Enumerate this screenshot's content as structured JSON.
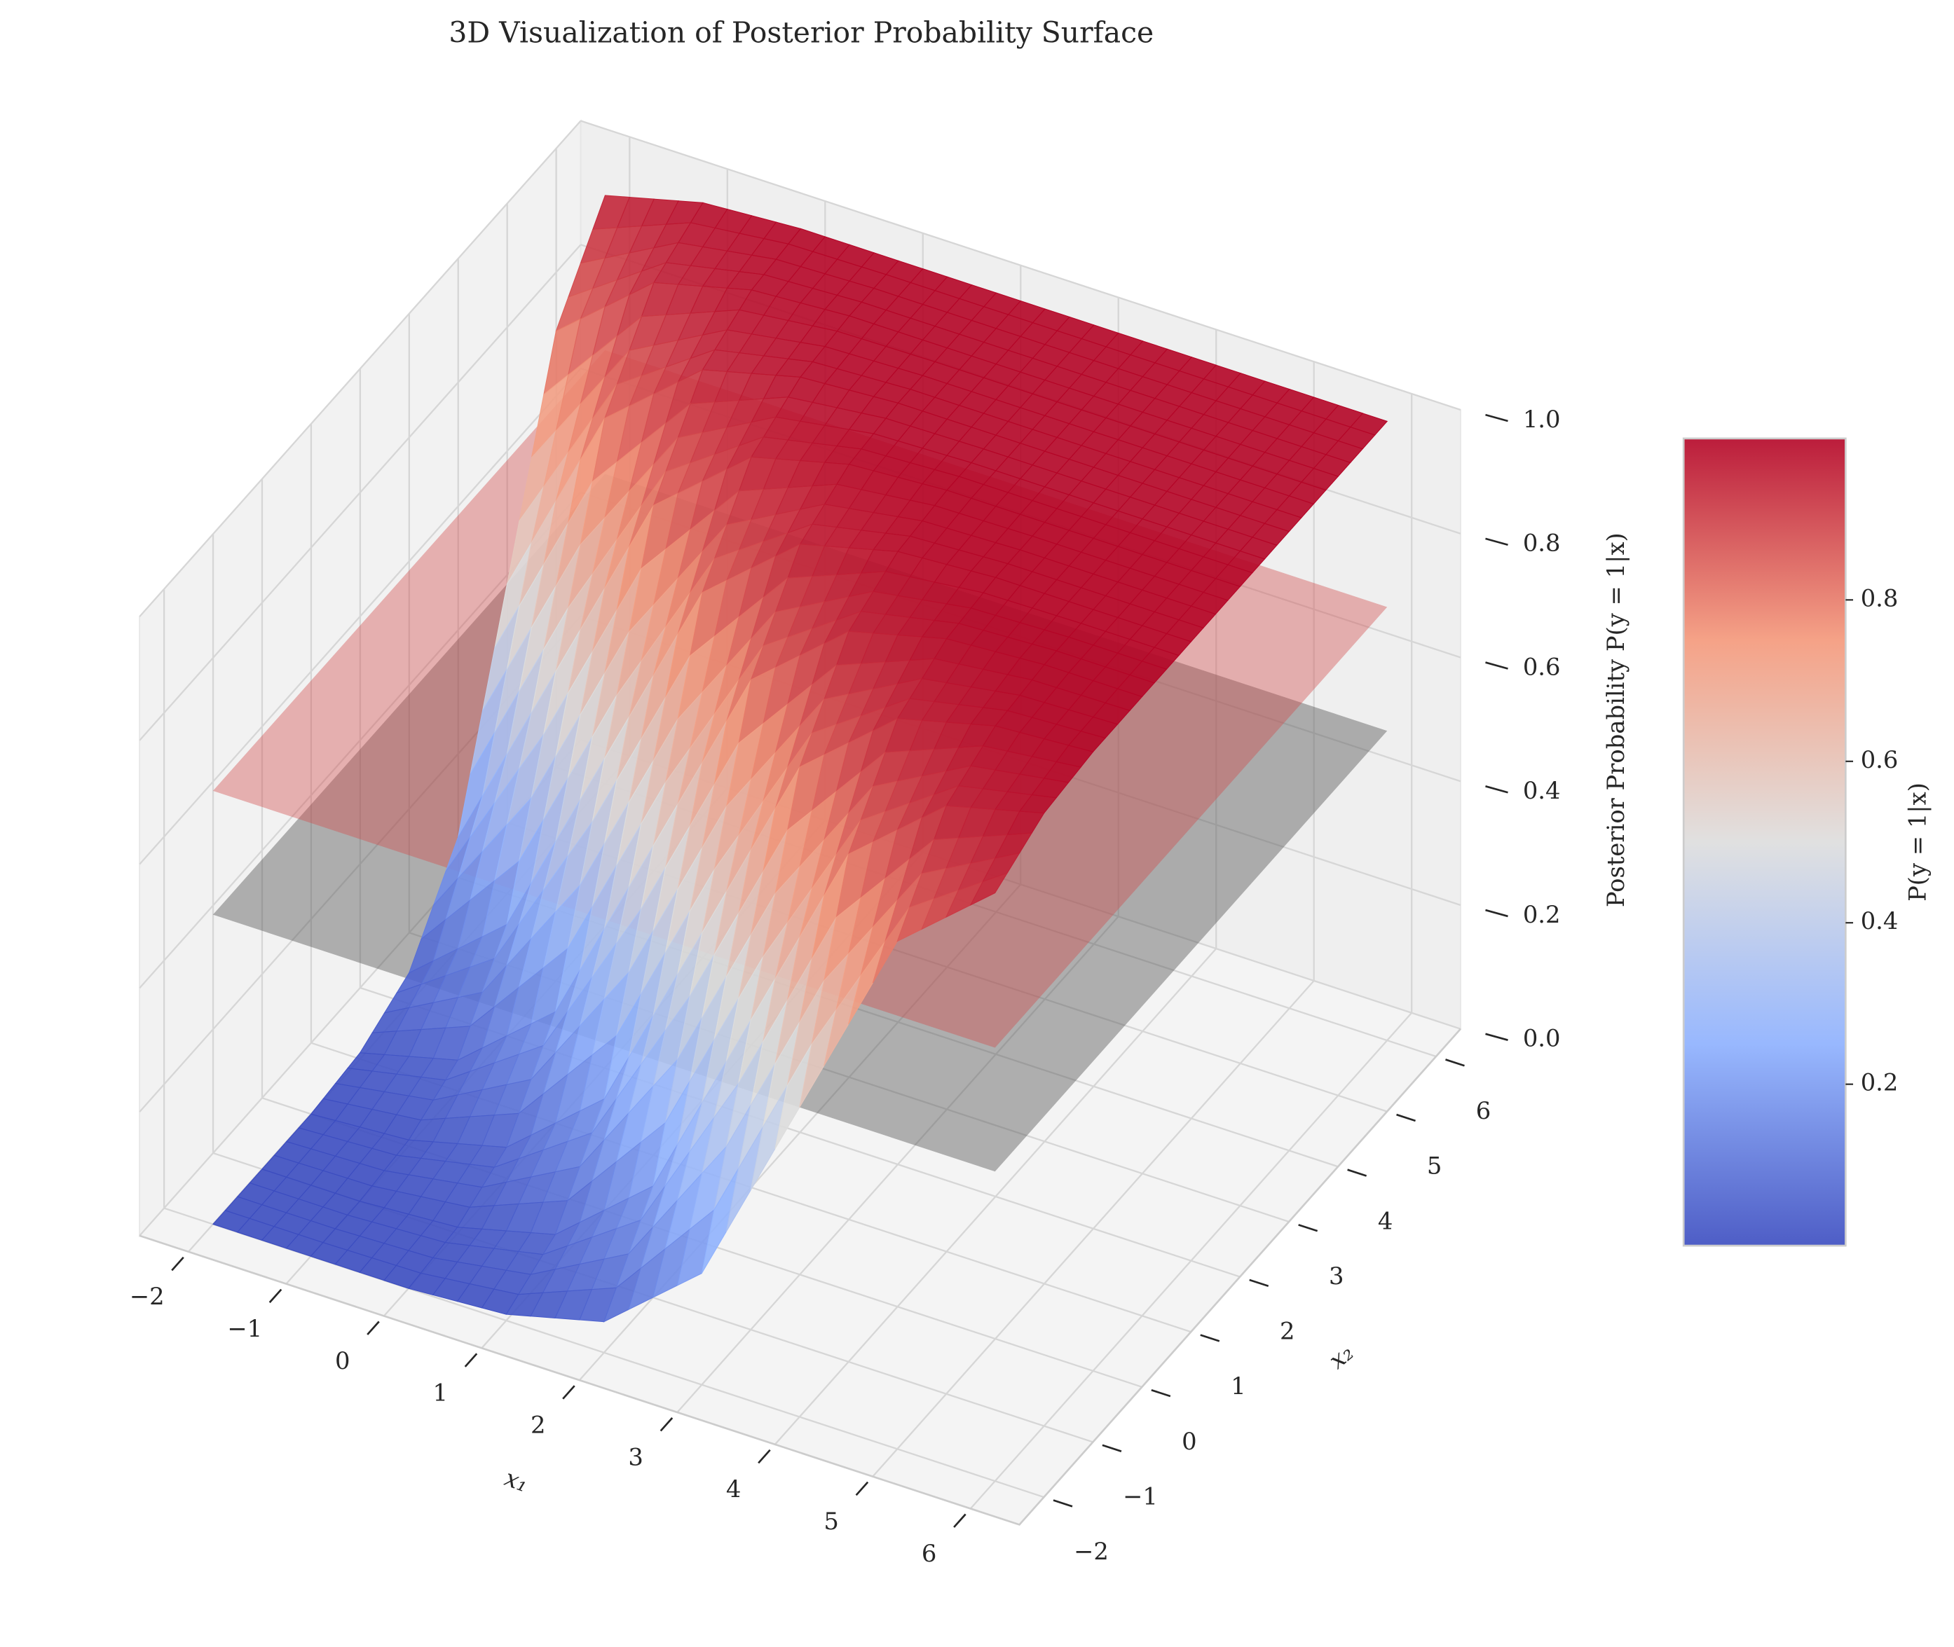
{
  "chart_data": {
    "type": "surface3d",
    "title": "3D Visualization of Posterior Probability Surface",
    "x_label": "x₁",
    "y_label": "x₂",
    "z_label": "Posterior Probability P(y = 1|x)",
    "colorbar_label": "P(y = 1|x)",
    "x": [
      -2,
      -1,
      0,
      1,
      2,
      3,
      4,
      5,
      6
    ],
    "y": [
      -2,
      -1,
      0,
      1,
      2,
      3,
      4,
      5,
      6
    ],
    "z": [
      [
        0,
        0,
        0,
        0.01,
        0.05,
        0.18,
        0.5,
        0.82,
        0.95
      ],
      [
        0,
        0,
        0.01,
        0.05,
        0.18,
        0.5,
        0.82,
        0.95,
        0.99
      ],
      [
        0,
        0.01,
        0.05,
        0.18,
        0.5,
        0.82,
        0.95,
        0.99,
        1
      ],
      [
        0.01,
        0.05,
        0.18,
        0.5,
        0.82,
        0.95,
        0.99,
        1,
        1
      ],
      [
        0.05,
        0.18,
        0.5,
        0.82,
        0.95,
        0.99,
        1,
        1,
        1
      ],
      [
        0.18,
        0.5,
        0.82,
        0.95,
        0.99,
        1,
        1,
        1,
        1
      ],
      [
        0.5,
        0.82,
        0.95,
        0.99,
        1,
        1,
        1,
        1,
        1
      ],
      [
        0.82,
        0.95,
        0.99,
        1,
        1,
        1,
        1,
        1,
        1
      ],
      [
        0.95,
        0.99,
        1,
        1,
        1,
        1,
        1,
        1,
        1
      ]
    ],
    "xlim": [
      -2.5,
      6.5
    ],
    "ylim": [
      -2.5,
      6.5
    ],
    "zlim": [
      0,
      1
    ],
    "xticks": [
      {
        "value": -2,
        "label": "−2"
      },
      {
        "value": -1,
        "label": "−1"
      },
      0,
      1,
      2,
      3,
      4,
      5,
      6
    ],
    "yticks": [
      {
        "value": -2,
        "label": "−2"
      },
      {
        "value": -1,
        "label": "−1"
      },
      0,
      1,
      2,
      3,
      4,
      5,
      6
    ],
    "zticks": [
      {
        "value": 0,
        "label": "0.0"
      },
      0.2,
      0.4,
      0.6,
      0.8,
      {
        "value": 1,
        "label": "1.0"
      }
    ],
    "colormap": [
      "#3b4cc0",
      "#8db0fe",
      "#dddddd",
      "#f4987a",
      "#b40426"
    ],
    "clim": [
      0,
      1
    ],
    "colorbar_ticks": [
      0.2,
      0.4,
      0.6,
      0.8
    ],
    "surface_alpha": 0.9,
    "planes": [
      {
        "value": 0.5,
        "color": "#595959",
        "alpha": 0.45
      },
      {
        "value": 0.7,
        "color": "#d24b4b",
        "alpha": 0.4
      }
    ],
    "grid": true
  }
}
